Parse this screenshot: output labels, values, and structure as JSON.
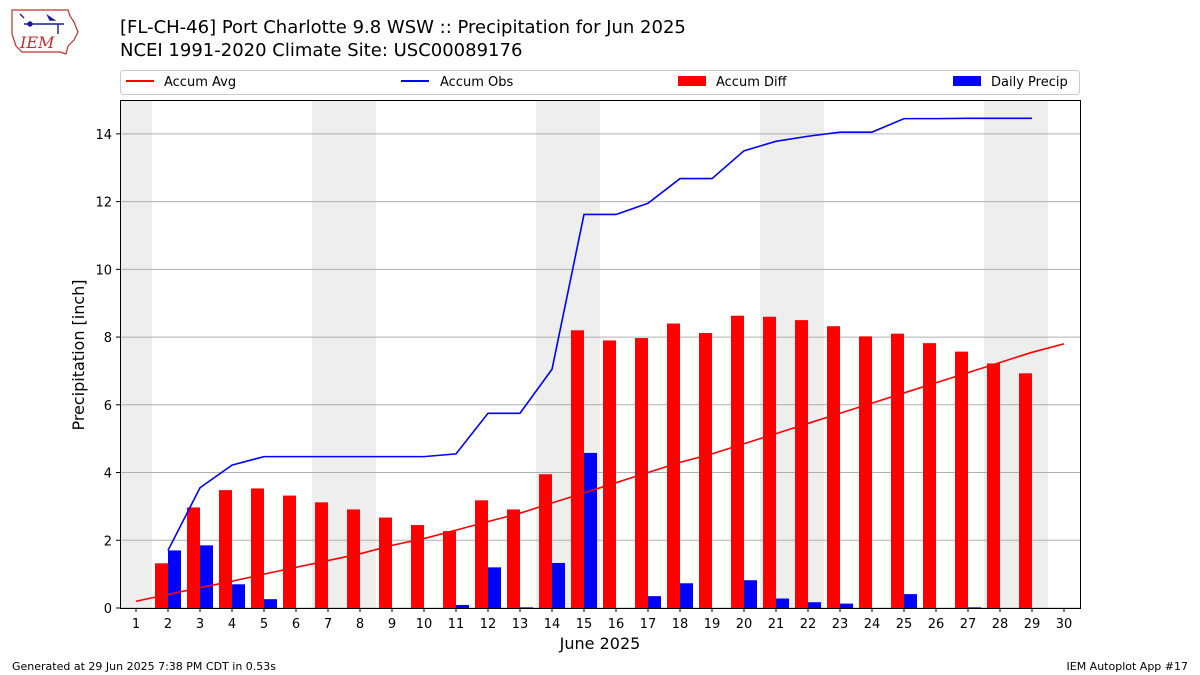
{
  "header": {
    "title_line1": "[FL-CH-46] Port Charlotte 9.8 WSW :: Precipitation for Jun 2025",
    "title_line2": "NCEI 1991-2020 Climate Site: USC00089176",
    "logo_text": "IEM"
  },
  "footer": {
    "left": "Generated at 29 Jun 2025 7:38 PM CDT in 0.53s",
    "right": "IEM Autoplot App #17"
  },
  "colors": {
    "accum_avg": "#ff0000",
    "accum_obs": "#0000ff",
    "accum_diff": "#ff0000",
    "daily_precip": "#0000ff",
    "weekend_shade": "#eeeeee",
    "grid": "#b0b0b0"
  },
  "chart_data": {
    "type": "bar",
    "xlabel": "June 2025",
    "ylabel": "Precipitation [inch]",
    "xlim": [
      0.5,
      30.5
    ],
    "ylim": [
      0,
      15
    ],
    "x_ticks": [
      1,
      2,
      3,
      4,
      5,
      6,
      7,
      8,
      9,
      10,
      11,
      12,
      13,
      14,
      15,
      16,
      17,
      18,
      19,
      20,
      21,
      22,
      23,
      24,
      25,
      26,
      27,
      28,
      29,
      30
    ],
    "y_ticks": [
      0,
      2,
      4,
      6,
      8,
      10,
      12,
      14
    ],
    "y_grid": true,
    "legend_placement": "top, above plot",
    "shaded_days": [
      [
        0.5,
        1.5
      ],
      [
        6.5,
        8.5
      ],
      [
        13.5,
        15.5
      ],
      [
        20.5,
        22.5
      ],
      [
        27.5,
        29.5
      ]
    ],
    "series": [
      {
        "name": "Accum Avg",
        "kind": "line",
        "x": [
          1,
          2,
          3,
          4,
          5,
          6,
          7,
          8,
          9,
          10,
          11,
          12,
          13,
          14,
          15,
          16,
          17,
          18,
          19,
          20,
          21,
          22,
          23,
          24,
          25,
          26,
          27,
          28,
          29,
          30
        ],
        "values": [
          0.2,
          0.4,
          0.6,
          0.79,
          1.0,
          1.2,
          1.4,
          1.6,
          1.85,
          2.05,
          2.3,
          2.55,
          2.8,
          3.1,
          3.4,
          3.7,
          4.0,
          4.3,
          4.55,
          4.85,
          5.15,
          5.45,
          5.75,
          6.05,
          6.35,
          6.65,
          6.95,
          7.25,
          7.55,
          7.8
        ]
      },
      {
        "name": "Accum Obs",
        "kind": "line",
        "x": [
          2,
          3,
          4,
          5,
          6,
          7,
          8,
          9,
          10,
          11,
          12,
          13,
          14,
          15,
          16,
          17,
          18,
          19,
          20,
          21,
          22,
          23,
          24,
          25,
          26,
          27,
          28,
          29
        ],
        "values": [
          1.7,
          3.55,
          4.22,
          4.47,
          4.47,
          4.47,
          4.47,
          4.47,
          4.47,
          4.55,
          5.75,
          5.75,
          7.05,
          11.62,
          11.62,
          11.95,
          12.68,
          12.68,
          13.5,
          13.78,
          13.93,
          14.05,
          14.05,
          14.45,
          14.45,
          14.46,
          14.46,
          14.46
        ]
      },
      {
        "name": "Accum Diff",
        "kind": "bar",
        "x": [
          2,
          3,
          4,
          5,
          6,
          7,
          8,
          9,
          10,
          11,
          12,
          13,
          14,
          15,
          16,
          17,
          18,
          19,
          20,
          21,
          22,
          23,
          24,
          25,
          26,
          27,
          28,
          29
        ],
        "values": [
          1.32,
          2.97,
          3.48,
          3.53,
          3.32,
          3.12,
          2.91,
          2.67,
          2.45,
          2.27,
          3.18,
          2.91,
          3.95,
          8.2,
          7.9,
          7.97,
          8.4,
          8.12,
          8.63,
          8.6,
          8.5,
          8.32,
          8.02,
          8.1,
          7.82,
          7.57,
          7.22,
          6.93
        ]
      },
      {
        "name": "Daily Precip",
        "kind": "bar",
        "x": [
          2,
          3,
          4,
          5,
          6,
          7,
          8,
          9,
          10,
          11,
          12,
          13,
          14,
          15,
          16,
          17,
          18,
          19,
          20,
          21,
          22,
          23,
          24,
          25,
          26,
          27,
          28,
          29
        ],
        "values": [
          1.7,
          1.85,
          0.7,
          0.26,
          0,
          0,
          0,
          0,
          0,
          0.09,
          1.2,
          0.02,
          1.33,
          4.58,
          0,
          0.35,
          0.73,
          0,
          0.82,
          0.28,
          0.17,
          0.13,
          0,
          0.41,
          0,
          0.02,
          0,
          0
        ]
      }
    ]
  }
}
